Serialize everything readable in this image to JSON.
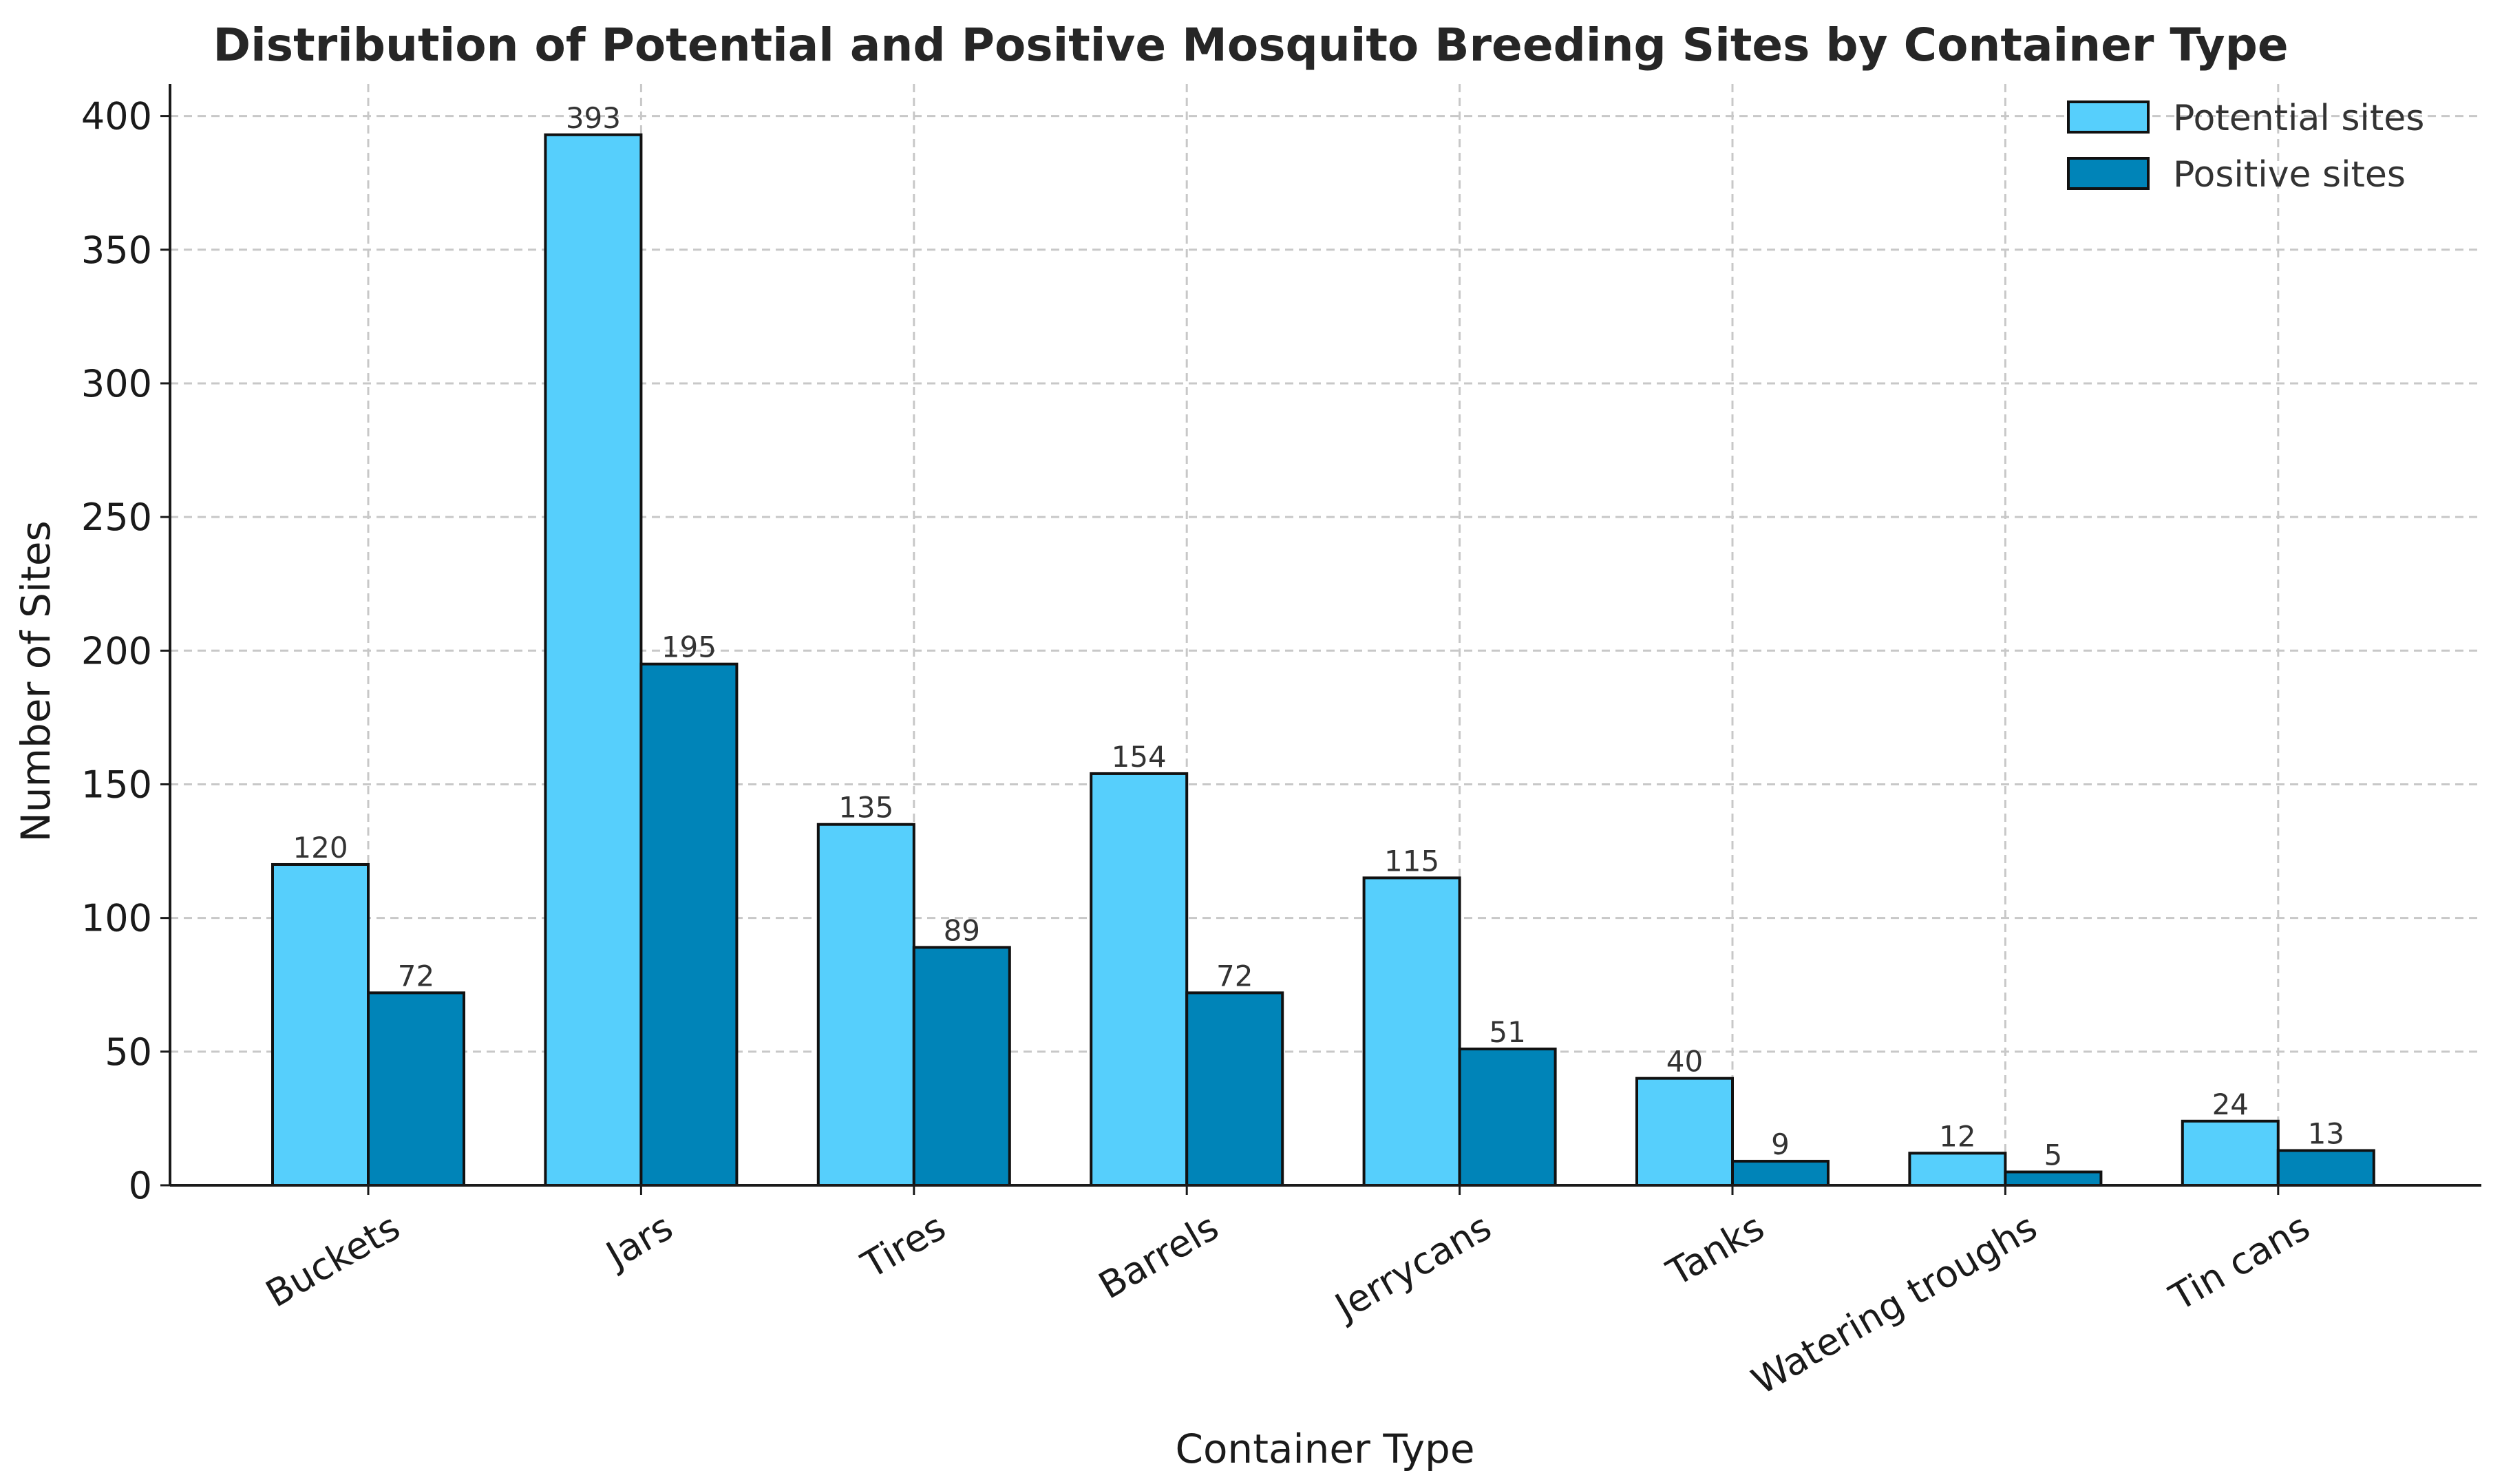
{
  "chart_data": {
    "type": "bar",
    "title": "Distribution of Potential and Positive Mosquito Breeding Sites by Container Type",
    "xlabel": "Container Type",
    "ylabel": "Number of Sites",
    "categories": [
      "Buckets",
      "Jars",
      "Tires",
      "Barrels",
      "Jerrycans",
      "Tanks",
      "Watering troughs",
      "Tin cans"
    ],
    "series": [
      {
        "name": "Potential sites",
        "values": [
          120,
          393,
          135,
          154,
          115,
          40,
          12,
          24
        ],
        "color": "#56CFFC"
      },
      {
        "name": "Positive sites",
        "values": [
          72,
          195,
          89,
          72,
          51,
          9,
          5,
          13
        ],
        "color": "#0084B8"
      }
    ],
    "ylim": [
      0,
      412
    ],
    "yticks": [
      0,
      50,
      100,
      150,
      200,
      250,
      300,
      350,
      400
    ],
    "grid": true,
    "legend_position": "top-right",
    "data_labels": true
  }
}
